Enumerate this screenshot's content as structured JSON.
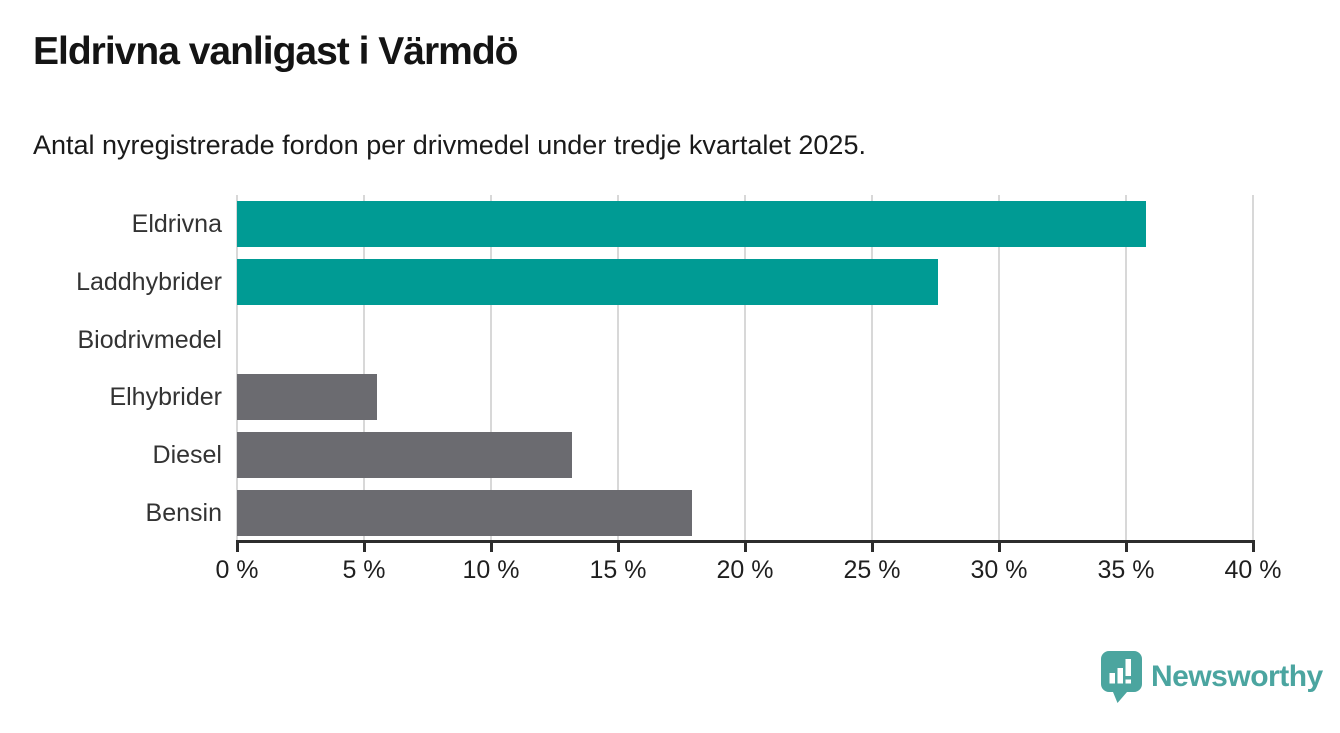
{
  "header": {
    "title": "Eldrivna vanligast i Värmdö",
    "subtitle": "Antal nyregistrerade fordon per drivmedel under tredje kvartalet 2025."
  },
  "chart_data": {
    "type": "bar",
    "orientation": "horizontal",
    "title": "Eldrivna vanligast i Värmdö",
    "subtitle": "Antal nyregistrerade fordon per drivmedel under tredje kvartalet 2025.",
    "categories": [
      "Eldrivna",
      "Laddhybrider",
      "Biodrivmedel",
      "Elhybrider",
      "Diesel",
      "Bensin"
    ],
    "values": [
      35.8,
      27.6,
      0,
      5.5,
      13.2,
      17.9
    ],
    "unit": "%",
    "xlabel": "",
    "ylabel": "",
    "xlim": [
      0,
      40
    ],
    "x_ticks": [
      0,
      5,
      10,
      15,
      20,
      25,
      30,
      35,
      40
    ],
    "x_tick_labels": [
      "0 %",
      "5 %",
      "10 %",
      "15 %",
      "20 %",
      "25 %",
      "30 %",
      "35 %",
      "40 %"
    ],
    "grid": true,
    "legend": false,
    "bar_colors": [
      "#009b94",
      "#009b94",
      "#6b6b70",
      "#6b6b70",
      "#6b6b70",
      "#6b6b70"
    ]
  },
  "colors": {
    "accent_teal": "#009b94",
    "neutral_gray": "#6b6b70",
    "gridline": "#d8d8d8",
    "axis": "#2d2d2d",
    "text": "#1a1a1a",
    "brand_teal": "#4ba5a0"
  },
  "footer": {
    "brand": "Newsworthy"
  }
}
